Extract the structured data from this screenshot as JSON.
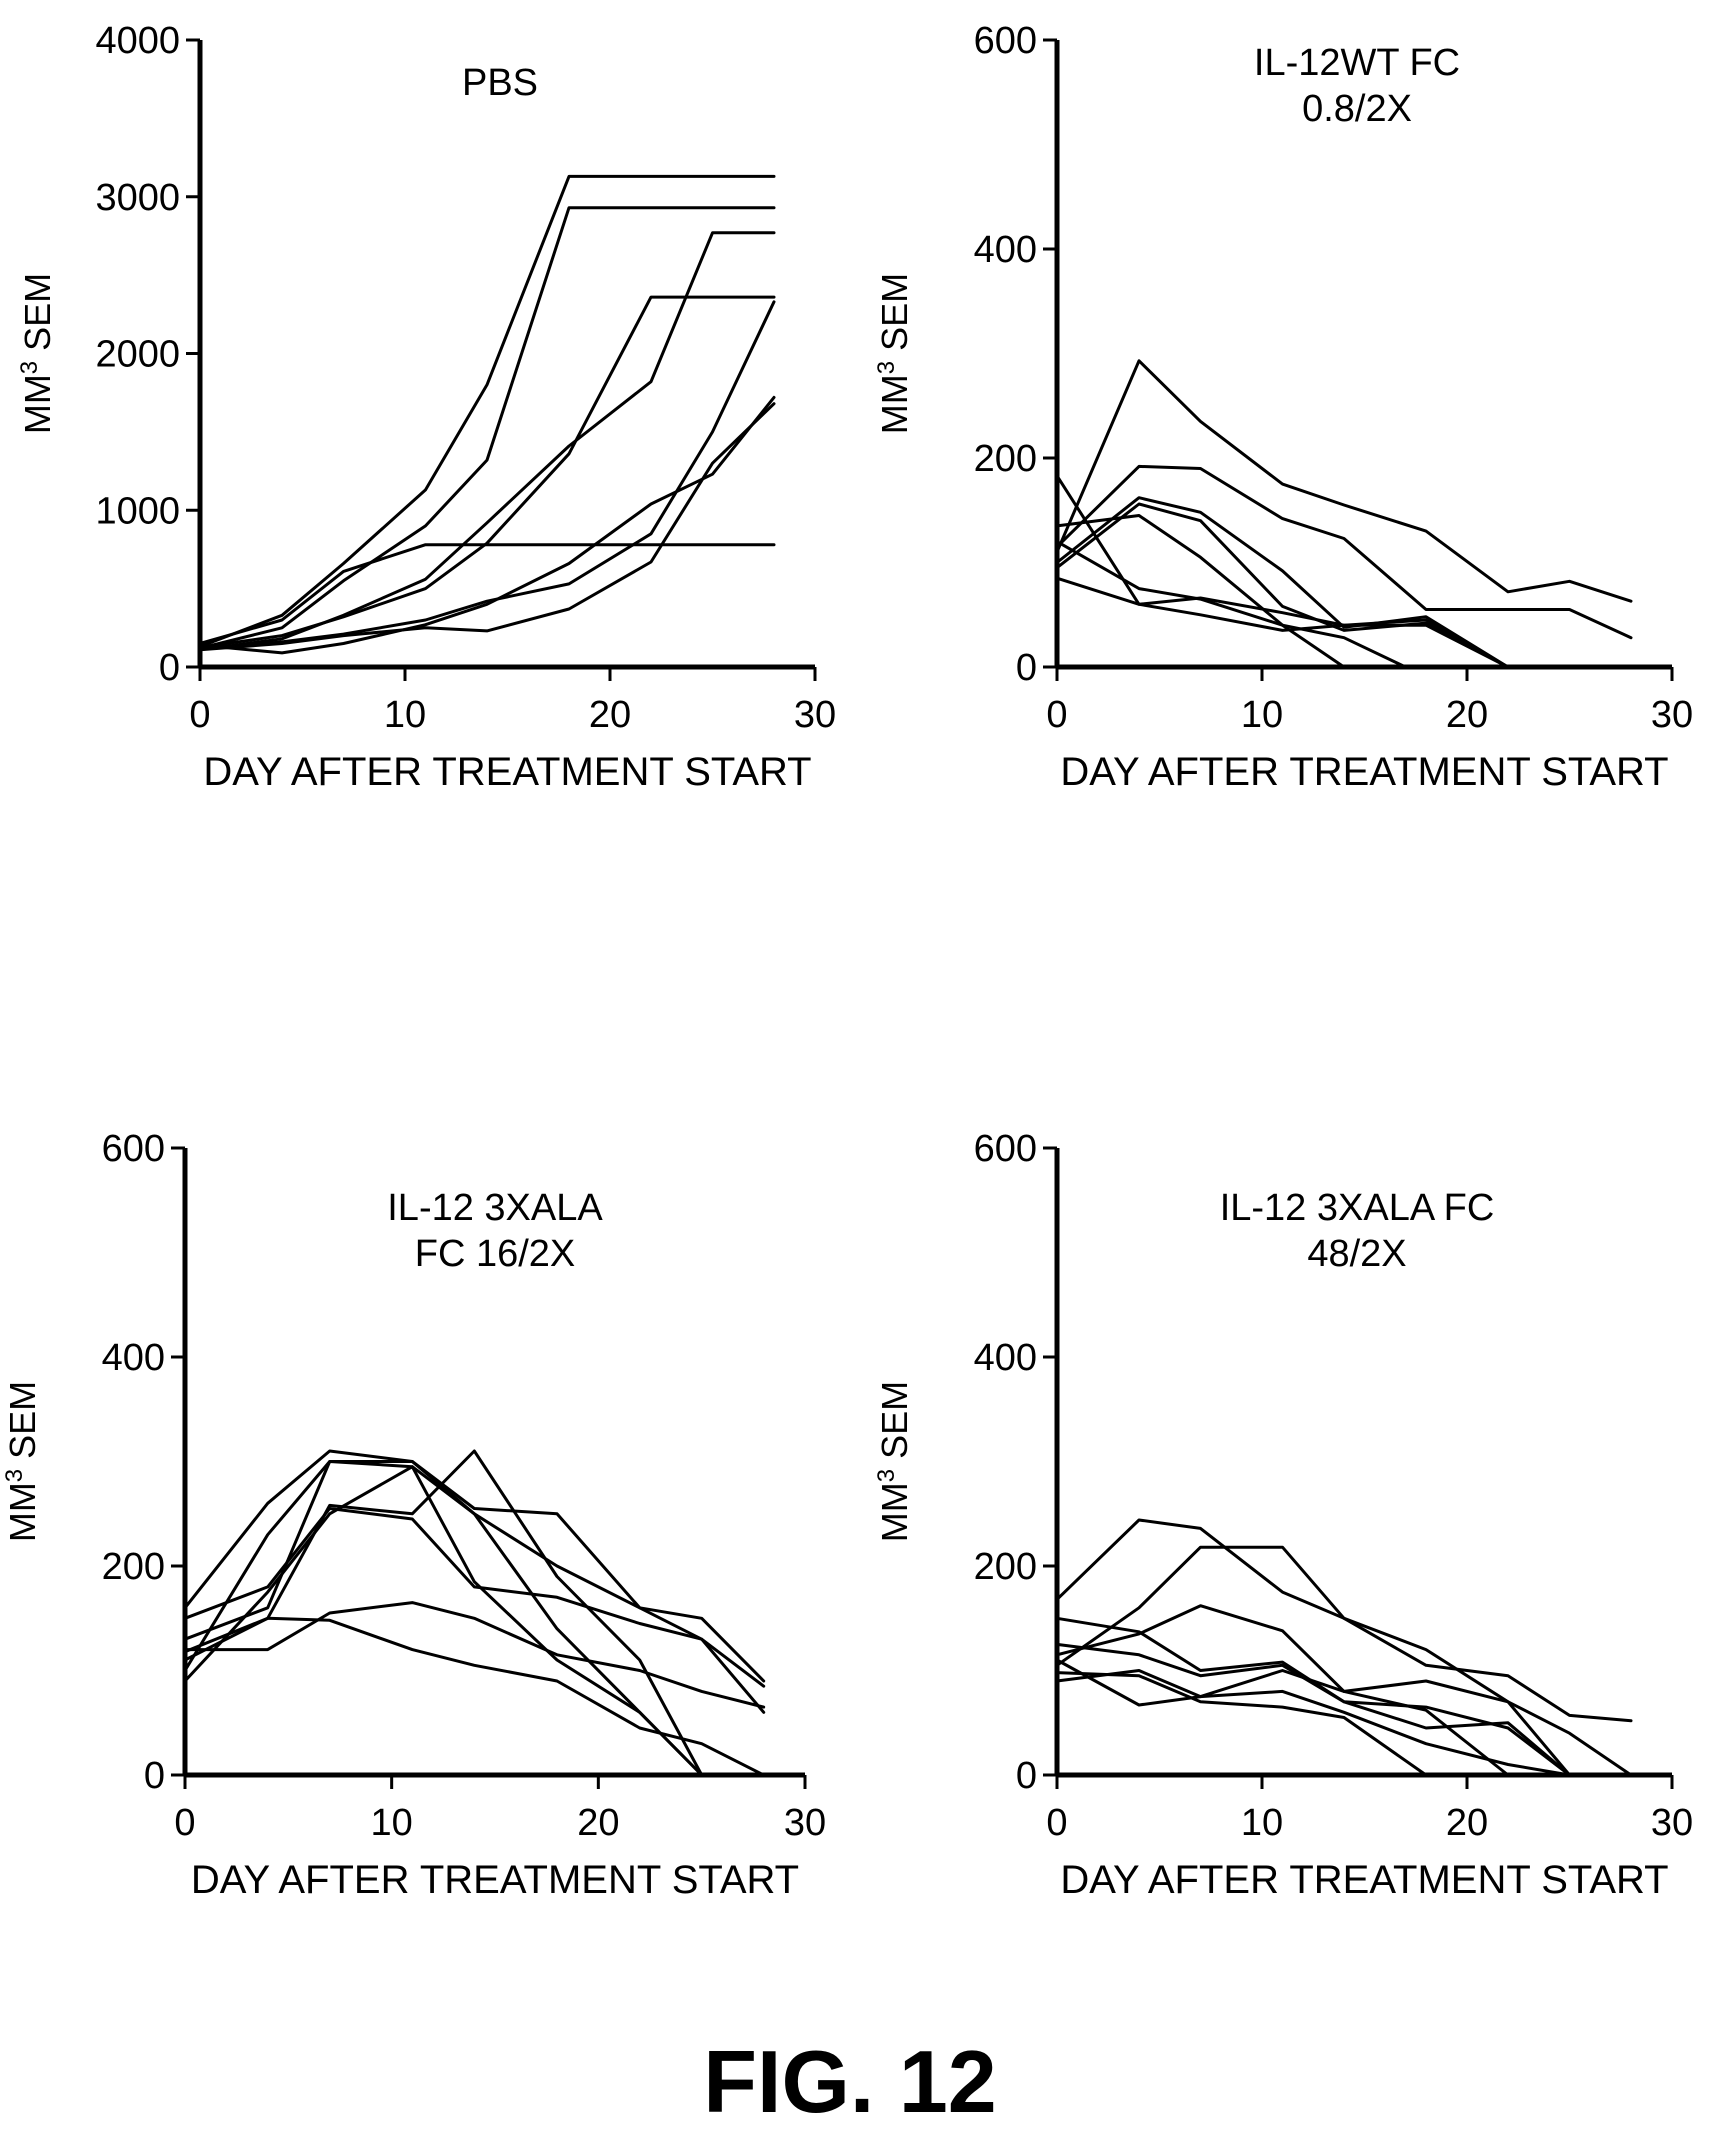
{
  "figure": {
    "label": "FIG. 12"
  },
  "chart_data": [
    {
      "type": "line",
      "title_lines": [
        "PBS"
      ],
      "xlabel": "DAY AFTER TREATMENT START",
      "ylabel_main": "MM",
      "ylabel_sup": "3",
      "ylabel_rest": " SEM",
      "xlim": [
        0,
        30
      ],
      "ylim": [
        0,
        4000
      ],
      "xticks": [
        0,
        10,
        20,
        30
      ],
      "yticks": [
        0,
        1000,
        2000,
        3000,
        4000
      ],
      "series": [
        {
          "x": [
            0,
            4,
            7,
            11,
            14,
            18,
            22,
            25,
            28
          ],
          "y": [
            130,
            330,
            660,
            1130,
            1800,
            3130,
            3130,
            3130,
            3130
          ]
        },
        {
          "x": [
            0,
            4,
            7,
            11,
            14,
            18,
            22,
            25,
            28
          ],
          "y": [
            120,
            250,
            550,
            900,
            1320,
            2930,
            2930,
            2930,
            2930
          ]
        },
        {
          "x": [
            0,
            4,
            7,
            11,
            14,
            18,
            22,
            25,
            28
          ],
          "y": [
            110,
            180,
            330,
            560,
            920,
            1410,
            1820,
            2770,
            2770
          ]
        },
        {
          "x": [
            0,
            4,
            7,
            11,
            14,
            18,
            22,
            25,
            28
          ],
          "y": [
            150,
            300,
            610,
            780,
            780,
            780,
            780,
            780,
            780
          ]
        },
        {
          "x": [
            0,
            4,
            7,
            11,
            14,
            18,
            22,
            25,
            28
          ],
          "y": [
            125,
            200,
            320,
            500,
            790,
            1360,
            2360,
            2360,
            2360
          ]
        },
        {
          "x": [
            0,
            4,
            7,
            11,
            14,
            18,
            22,
            25,
            28
          ],
          "y": [
            140,
            90,
            150,
            270,
            400,
            660,
            1040,
            1230,
            1720
          ]
        },
        {
          "x": [
            0,
            4,
            7,
            11,
            14,
            18,
            22,
            25,
            28
          ],
          "y": [
            115,
            160,
            210,
            300,
            420,
            530,
            850,
            1500,
            2330
          ]
        },
        {
          "x": [
            0,
            4,
            7,
            11,
            14,
            18,
            22,
            25,
            28
          ],
          "y": [
            110,
            150,
            200,
            250,
            230,
            370,
            670,
            1300,
            1680
          ]
        }
      ]
    },
    {
      "type": "line",
      "title_lines": [
        "IL-12WT FC",
        "0.8/2X"
      ],
      "xlabel": "DAY AFTER TREATMENT START",
      "ylabel_main": "MM",
      "ylabel_sup": "3",
      "ylabel_rest": " SEM",
      "xlim": [
        0,
        30
      ],
      "ylim": [
        0,
        600
      ],
      "xticks": [
        0,
        10,
        20,
        30
      ],
      "yticks": [
        0,
        200,
        400,
        600
      ],
      "series": [
        {
          "x": [
            0,
            4,
            7,
            11,
            14,
            18,
            22,
            25,
            28
          ],
          "y": [
            110,
            293,
            235,
            175,
            155,
            130,
            72,
            82,
            63
          ]
        },
        {
          "x": [
            0,
            4,
            7,
            11,
            14,
            18,
            22,
            25,
            28
          ],
          "y": [
            115,
            192,
            190,
            142,
            123,
            55,
            55,
            55,
            28
          ]
        },
        {
          "x": [
            0,
            4,
            7,
            11,
            14,
            18,
            22
          ],
          "y": [
            100,
            162,
            148,
            92,
            38,
            48,
            0
          ]
        },
        {
          "x": [
            0,
            4,
            7,
            11,
            14,
            18,
            22
          ],
          "y": [
            95,
            156,
            140,
            58,
            35,
            42,
            0
          ]
        },
        {
          "x": [
            0,
            4,
            7,
            11,
            14,
            17
          ],
          "y": [
            135,
            145,
            105,
            40,
            28,
            0
          ]
        },
        {
          "x": [
            0,
            4,
            7,
            11,
            14
          ],
          "y": [
            120,
            75,
            65,
            40,
            0
          ]
        },
        {
          "x": [
            0,
            4,
            7,
            11,
            14,
            18,
            22
          ],
          "y": [
            183,
            60,
            66,
            52,
            40,
            40,
            0
          ]
        },
        {
          "x": [
            0,
            4,
            7,
            11,
            14,
            18,
            22
          ],
          "y": [
            85,
            60,
            50,
            35,
            40,
            45,
            0
          ]
        },
        {
          "x": [
            0,
            28
          ],
          "y": [
            0,
            0
          ]
        }
      ]
    },
    {
      "type": "line",
      "title_lines": [
        "IL-12 3XALA",
        "FC 16/2X"
      ],
      "xlabel": "DAY AFTER TREATMENT START",
      "ylabel_main": "MM",
      "ylabel_sup": "3",
      "ylabel_rest": " SEM",
      "xlim": [
        0,
        30
      ],
      "ylim": [
        0,
        600
      ],
      "xticks": [
        0,
        10,
        20,
        30
      ],
      "yticks": [
        0,
        200,
        400,
        600
      ],
      "series": [
        {
          "x": [
            0,
            4,
            7,
            11,
            14,
            18,
            22,
            25,
            28
          ],
          "y": [
            160,
            260,
            310,
            300,
            255,
            250,
            160,
            150,
            90
          ]
        },
        {
          "x": [
            0,
            4,
            7,
            11,
            14,
            18,
            22,
            25,
            28
          ],
          "y": [
            130,
            160,
            300,
            295,
            250,
            200,
            160,
            130,
            85
          ]
        },
        {
          "x": [
            0,
            4,
            7,
            11,
            14,
            18,
            22,
            25,
            28
          ],
          "y": [
            150,
            180,
            255,
            245,
            180,
            170,
            145,
            130,
            60
          ]
        },
        {
          "x": [
            0,
            4,
            7,
            11,
            14,
            18,
            22,
            25
          ],
          "y": [
            90,
            175,
            250,
            295,
            185,
            110,
            60,
            0
          ]
        },
        {
          "x": [
            0,
            4,
            7,
            11,
            14,
            18,
            22,
            25
          ],
          "y": [
            110,
            150,
            258,
            250,
            310,
            190,
            110,
            0
          ]
        },
        {
          "x": [
            0,
            4,
            7,
            11,
            14,
            18,
            22,
            25,
            28
          ],
          "y": [
            120,
            120,
            155,
            165,
            150,
            115,
            100,
            80,
            65
          ]
        },
        {
          "x": [
            0,
            4,
            7,
            11,
            14,
            18,
            22,
            25,
            28
          ],
          "y": [
            118,
            150,
            148,
            120,
            105,
            90,
            45,
            30,
            0
          ]
        },
        {
          "x": [
            0,
            4,
            7,
            11,
            14,
            18,
            22,
            25
          ],
          "y": [
            100,
            230,
            300,
            300,
            250,
            140,
            60,
            0
          ]
        }
      ]
    },
    {
      "type": "line",
      "title_lines": [
        "IL-12 3XALA FC",
        "48/2X"
      ],
      "xlabel": "DAY AFTER TREATMENT START",
      "ylabel_main": "MM",
      "ylabel_sup": "3",
      "ylabel_rest": " SEM",
      "xlim": [
        0,
        30
      ],
      "ylim": [
        0,
        600
      ],
      "xticks": [
        0,
        10,
        20,
        30
      ],
      "yticks": [
        0,
        200,
        400,
        600
      ],
      "series": [
        {
          "x": [
            0,
            4,
            7,
            11,
            14,
            18,
            22,
            25,
            28
          ],
          "y": [
            168,
            244,
            236,
            175,
            150,
            105,
            95,
            57,
            52
          ]
        },
        {
          "x": [
            0,
            4,
            7,
            11,
            14,
            18,
            22,
            25
          ],
          "y": [
            105,
            160,
            218,
            218,
            150,
            120,
            70,
            0
          ]
        },
        {
          "x": [
            0,
            4,
            7,
            11,
            14,
            18,
            22,
            25,
            28
          ],
          "y": [
            115,
            135,
            162,
            138,
            80,
            90,
            70,
            40,
            0
          ]
        },
        {
          "x": [
            0,
            4,
            7,
            11,
            14,
            18,
            22,
            25
          ],
          "y": [
            150,
            137,
            100,
            108,
            70,
            65,
            45,
            0
          ]
        },
        {
          "x": [
            0,
            4,
            7,
            11,
            14,
            18,
            22
          ],
          "y": [
            110,
            67,
            75,
            100,
            80,
            62,
            0
          ]
        },
        {
          "x": [
            0,
            4,
            7,
            11,
            14,
            18,
            22,
            25
          ],
          "y": [
            125,
            115,
            95,
            105,
            70,
            45,
            50,
            0
          ]
        },
        {
          "x": [
            0,
            4,
            7,
            11,
            14,
            18,
            22,
            25
          ],
          "y": [
            90,
            100,
            75,
            80,
            60,
            30,
            10,
            0
          ]
        },
        {
          "x": [
            0,
            4,
            7,
            11,
            14,
            18
          ],
          "y": [
            98,
            95,
            70,
            65,
            55,
            0
          ]
        }
      ]
    }
  ]
}
